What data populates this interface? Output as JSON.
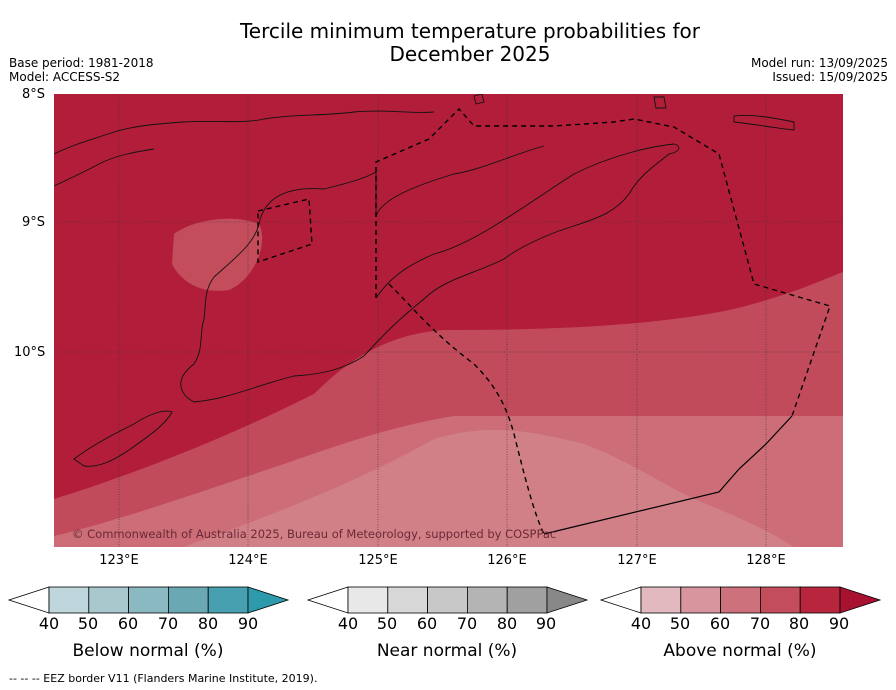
{
  "title_line1": "Tercile minimum temperature probabilities for",
  "title_line2": "December 2025",
  "base_period": "Base period: 1981-2018",
  "model": "Model: ACCESS-S2",
  "model_run": "Model run: 13/09/2025",
  "issued": "Issued: 15/09/2025",
  "lat_labels": [
    "8°S",
    "9°S",
    "10°S"
  ],
  "lon_labels": [
    "123°E",
    "124°E",
    "125°E",
    "126°E",
    "127°E",
    "128°E"
  ],
  "copyright": "© Commonwealth of Australia 2025, Bureau of Meteorology, supported by COSPPac",
  "colorbars": [
    {
      "label": "Below normal (%)",
      "ticks": [
        "40",
        "50",
        "60",
        "70",
        "80",
        "90"
      ],
      "colors": [
        "#ffffff",
        "#bfd6dc",
        "#a8c8ce",
        "#8ab9c2",
        "#6aa8b4",
        "#47a0b0",
        "#2e9aac"
      ]
    },
    {
      "label": "Near normal (%)",
      "ticks": [
        "40",
        "50",
        "60",
        "70",
        "80",
        "90"
      ],
      "colors": [
        "#ffffff",
        "#e8e8e8",
        "#d8d8d8",
        "#c8c8c8",
        "#b4b4b4",
        "#a0a0a0",
        "#888888"
      ]
    },
    {
      "label": "Above normal (%)",
      "ticks": [
        "40",
        "50",
        "60",
        "70",
        "80",
        "90"
      ],
      "colors": [
        "#ffffff",
        "#e2b9bf",
        "#d9959e",
        "#cd727d",
        "#c44d5c",
        "#b8263e",
        "#a8112f"
      ]
    }
  ],
  "footnote": "--  --  -- EEZ border V11 (Flanders Marine Institute, 2019).",
  "colors": {
    "dominant": "#b21e3a",
    "band80": "#c44d5c",
    "band70": "#cd727d"
  }
}
